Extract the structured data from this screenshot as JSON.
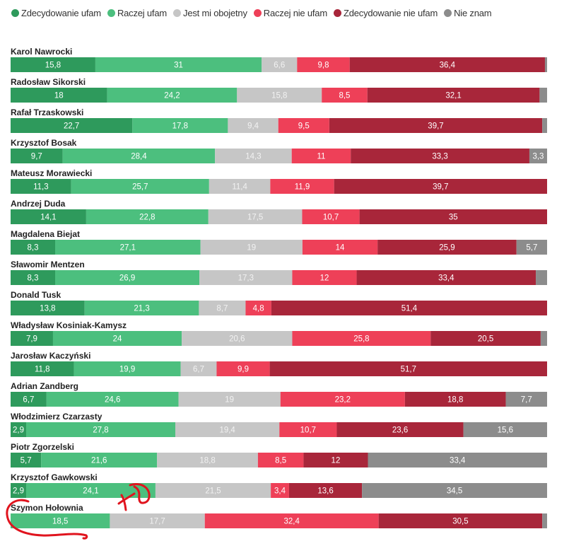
{
  "chart_data": {
    "type": "bar",
    "orientation": "horizontal",
    "stacked": true,
    "unit": "%",
    "legend_position": "top",
    "grid": false,
    "series": [
      {
        "name": "Zdecydowanie ufam",
        "color": "#2e9a5c"
      },
      {
        "name": "Raczej ufam",
        "color": "#4cbf7e"
      },
      {
        "name": "Jest mi obojetny",
        "color": "#c6c6c6"
      },
      {
        "name": "Raczej nie ufam",
        "color": "#ee4058"
      },
      {
        "name": "Zdecydowanie nie ufam",
        "color": "#a8263a"
      },
      {
        "name": "Nie znam",
        "color": "#8c8c8c"
      }
    ],
    "categories": [
      {
        "name": "Karol Nawrocki",
        "values": [
          15.8,
          31,
          6.6,
          9.8,
          36.4,
          0.4
        ]
      },
      {
        "name": "Radosław Sikorski",
        "values": [
          18,
          24.2,
          15.8,
          8.5,
          32.1,
          1.4
        ]
      },
      {
        "name": "Rafał Trzaskowski",
        "values": [
          22.7,
          17.8,
          9.4,
          9.5,
          39.7,
          0.9
        ]
      },
      {
        "name": "Krzysztof Bosak",
        "values": [
          9.7,
          28.4,
          14.3,
          11,
          33.3,
          3.3
        ]
      },
      {
        "name": "Mateusz Morawiecki",
        "values": [
          11.3,
          25.7,
          11.4,
          11.9,
          39.7,
          0
        ]
      },
      {
        "name": "Andrzej Duda",
        "values": [
          14.1,
          22.8,
          17.5,
          10.7,
          35,
          0
        ]
      },
      {
        "name": "Magdalena Biejat",
        "values": [
          8.3,
          27.1,
          19,
          14,
          25.9,
          5.7
        ]
      },
      {
        "name": "Sławomir Mentzen",
        "values": [
          8.3,
          26.9,
          17.3,
          12,
          33.4,
          2.1
        ]
      },
      {
        "name": "Donald Tusk",
        "values": [
          13.8,
          21.3,
          8.7,
          4.8,
          51.4,
          0
        ]
      },
      {
        "name": "Władysław Kosiniak-Kamysz",
        "values": [
          7.9,
          24,
          20.6,
          25.8,
          20.5,
          1.2
        ]
      },
      {
        "name": "Jarosław Kaczyński",
        "values": [
          11.8,
          19.9,
          6.7,
          9.9,
          51.7,
          0
        ]
      },
      {
        "name": "Adrian Zandberg",
        "values": [
          6.7,
          24.6,
          19,
          23.2,
          18.8,
          7.7
        ]
      },
      {
        "name": "Włodzimierz Czarzasty",
        "values": [
          2.9,
          27.8,
          19.4,
          10.7,
          23.6,
          15.6
        ]
      },
      {
        "name": "Piotr Zgorzelski",
        "values": [
          5.7,
          21.6,
          18.8,
          8.5,
          12,
          33.4
        ]
      },
      {
        "name": "Krzysztof Gawkowski",
        "values": [
          2.9,
          24.1,
          21.5,
          3.4,
          13.6,
          34.5
        ]
      },
      {
        "name": "Szymon Hołownia",
        "values": [
          0,
          18.5,
          17.7,
          32.4,
          30.5,
          0.9
        ]
      }
    ],
    "xlim": [
      0,
      100
    ]
  },
  "annotation": {
    "handwritten_text": "xD",
    "color": "#e0141e"
  }
}
